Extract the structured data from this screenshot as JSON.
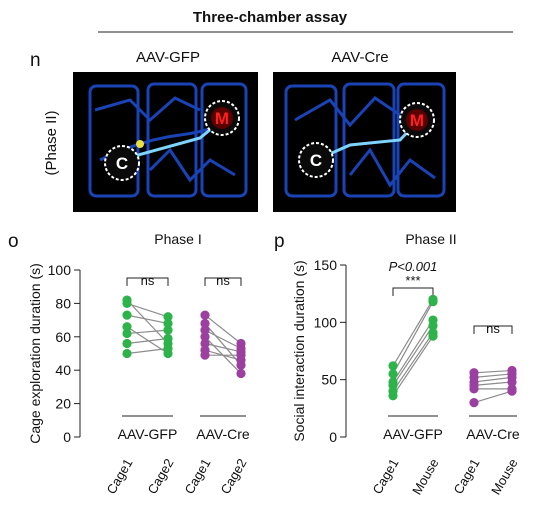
{
  "header": {
    "title": "Three-chamber assay"
  },
  "panel_n": {
    "label": "n",
    "row_label": "(Phase II)",
    "images": [
      {
        "title": "AAV-GFP",
        "cage_label": "C",
        "mouse_label": "M"
      },
      {
        "title": "AAV-Cre",
        "cage_label": "C",
        "mouse_label": "M"
      }
    ]
  },
  "chart_data": [
    {
      "type": "paired_dot",
      "panel": "o",
      "title": "Phase I",
      "y_label": "Cage exploration duration (s)",
      "categories": [
        "Cage1",
        "Cage2",
        "Cage1",
        "Cage2"
      ],
      "ylim": [
        0,
        100
      ],
      "yticks": [
        0,
        20,
        40,
        60,
        80,
        100
      ],
      "connector_color": "#8c8c8c",
      "groups": [
        {
          "name": "AAV-GFP",
          "color": "#2db34a",
          "significance": "ns",
          "values": [
            [
              82,
              56
            ],
            [
              80,
              72
            ],
            [
              73,
              68
            ],
            [
              66,
              50
            ],
            [
              62,
              64
            ],
            [
              56,
              59
            ],
            [
              50,
              53
            ]
          ]
        },
        {
          "name": "AAV-Cre",
          "color": "#9b3fa0",
          "significance": "ns",
          "values": [
            [
              73,
              56
            ],
            [
              68,
              43
            ],
            [
              64,
              53
            ],
            [
              60,
              38
            ],
            [
              56,
              51
            ],
            [
              52,
              46
            ],
            [
              49,
              49
            ]
          ]
        }
      ]
    },
    {
      "type": "paired_dot",
      "panel": "p",
      "title": "Phase II",
      "y_label": "Social interaction duration (s)",
      "categories": [
        "Cage1",
        "Mouse",
        "Cage1",
        "Mouse"
      ],
      "ylim": [
        0,
        150
      ],
      "yticks": [
        0,
        50,
        100,
        150
      ],
      "connector_color": "#8c8c8c",
      "groups": [
        {
          "name": "AAV-GFP",
          "color": "#2db34a",
          "significance": "***",
          "p_value": "P<0.001",
          "values": [
            [
              62,
              120
            ],
            [
              55,
              118
            ],
            [
              48,
              102
            ],
            [
              45,
              97
            ],
            [
              40,
              91
            ],
            [
              36,
              88
            ]
          ]
        },
        {
          "name": "AAV-Cre",
          "color": "#9b3fa0",
          "significance": "ns",
          "values": [
            [
              56,
              58
            ],
            [
              52,
              55
            ],
            [
              48,
              52
            ],
            [
              45,
              48
            ],
            [
              42,
              42
            ],
            [
              30,
              40
            ]
          ]
        }
      ]
    }
  ]
}
